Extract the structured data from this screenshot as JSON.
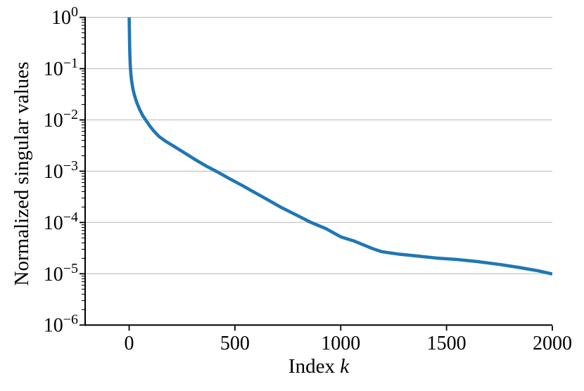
{
  "chart_data": {
    "type": "line",
    "title": "",
    "xlabel": "Index k",
    "xlabel_parts": [
      {
        "text": "Index ",
        "italic": false
      },
      {
        "text": "k",
        "italic": true
      }
    ],
    "ylabel": "Normalized singular values",
    "yscale": "log",
    "xlim": [
      -208,
      2000
    ],
    "ylim_exponents": [
      -6,
      0
    ],
    "x_ticks": [
      0,
      500,
      1000,
      1500,
      2000
    ],
    "y_tick_exponents": [
      0,
      -1,
      -2,
      -3,
      -4,
      -5,
      -6
    ],
    "grid": {
      "axis": "y",
      "which": "major"
    },
    "legend": "none",
    "series": [
      {
        "name": "normalized-singular-values",
        "color": "#1f77b4",
        "linewidth": 4.6,
        "points": [
          [
            0,
            1.0
          ],
          [
            1,
            0.52
          ],
          [
            2,
            0.3
          ],
          [
            3,
            0.2
          ],
          [
            5,
            0.117
          ],
          [
            8,
            0.079
          ],
          [
            12,
            0.056
          ],
          [
            18,
            0.0398
          ],
          [
            25,
            0.0302
          ],
          [
            35,
            0.0224
          ],
          [
            50,
            0.0158
          ],
          [
            65,
            0.012
          ],
          [
            78,
            0.01
          ],
          [
            95,
            0.0079
          ],
          [
            115,
            0.0062
          ],
          [
            140,
            0.0048
          ],
          [
            170,
            0.0039
          ],
          [
            215,
            0.003
          ],
          [
            260,
            0.0023
          ],
          [
            310,
            0.0017
          ],
          [
            360,
            0.00129
          ],
          [
            411,
            0.001
          ],
          [
            470,
            0.00073
          ],
          [
            530,
            0.00054
          ],
          [
            600,
            0.00037
          ],
          [
            660,
            0.00027
          ],
          [
            720,
            0.000195
          ],
          [
            790,
            0.00014
          ],
          [
            860,
            0.0001
          ],
          [
            930,
            7.6e-05
          ],
          [
            1000,
            5.25e-05
          ],
          [
            1060,
            4.4e-05
          ],
          [
            1120,
            3.49e-05
          ],
          [
            1150,
            3.1e-05
          ],
          [
            1190,
            2.72e-05
          ],
          [
            1230,
            2.56e-05
          ],
          [
            1280,
            2.4e-05
          ],
          [
            1350,
            2.24e-05
          ],
          [
            1450,
            2.03e-05
          ],
          [
            1550,
            1.9e-05
          ],
          [
            1650,
            1.72e-05
          ],
          [
            1750,
            1.52e-05
          ],
          [
            1850,
            1.31e-05
          ],
          [
            1930,
            1.15e-05
          ],
          [
            2000,
            9.9e-06
          ]
        ]
      }
    ]
  },
  "style": {
    "background": "#ffffff",
    "line_color": "#1f77b4",
    "grid_color": "#c4c4c4",
    "spine_color": "#000000",
    "text_color": "#000000"
  }
}
